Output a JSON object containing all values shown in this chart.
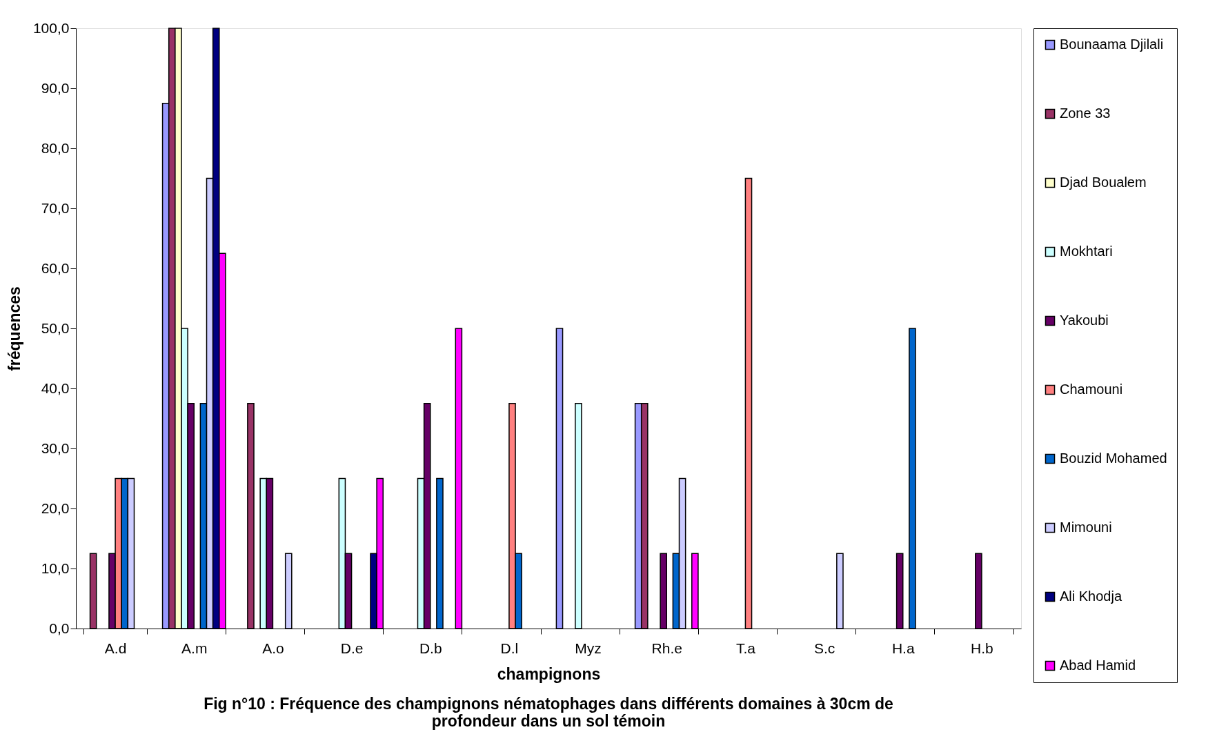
{
  "chart_data": {
    "type": "bar",
    "title": "Fig n°10  : Fréquence des champignons nématophages dans différents domaines à 30cm de profondeur dans un sol témoin",
    "xlabel": "champignons",
    "ylabel": "fréquences",
    "categories": [
      "A.d",
      "A.m",
      "A.o",
      "D.e",
      "D.b",
      "D.l",
      "Myz",
      "Rh.e",
      "T.a",
      "S.c",
      "H.a",
      "H.b"
    ],
    "series": [
      {
        "name": "Bounaama Djilali",
        "color": "#9999ff",
        "values": [
          0,
          87.5,
          0,
          0,
          0,
          0,
          50,
          37.5,
          0,
          0,
          0,
          0
        ]
      },
      {
        "name": "Zone 33",
        "color": "#993366",
        "values": [
          12.5,
          100,
          37.5,
          0,
          0,
          0,
          0,
          37.5,
          0,
          0,
          0,
          0
        ]
      },
      {
        "name": "Djad Boualem",
        "color": "#ffffcc",
        "values": [
          0,
          100,
          0,
          0,
          0,
          0,
          0,
          0,
          0,
          0,
          0,
          0
        ]
      },
      {
        "name": "Mokhtari",
        "color": "#ccffff",
        "values": [
          0,
          50,
          25,
          25,
          25,
          0,
          37.5,
          0,
          0,
          0,
          0,
          0
        ]
      },
      {
        "name": "Yakoubi",
        "color": "#660066",
        "values": [
          12.5,
          37.5,
          25,
          12.5,
          37.5,
          0,
          0,
          12.5,
          0,
          0,
          12.5,
          12.5
        ]
      },
      {
        "name": "Chamouni",
        "color": "#ff8080",
        "values": [
          25,
          0,
          0,
          0,
          0,
          37.5,
          0,
          0,
          75,
          0,
          0,
          0
        ]
      },
      {
        "name": "Bouzid Mohamed",
        "color": "#0066cc",
        "values": [
          25,
          37.5,
          0,
          0,
          25,
          12.5,
          0,
          12.5,
          0,
          0,
          50,
          0
        ]
      },
      {
        "name": "Mimouni",
        "color": "#ccccff",
        "values": [
          25,
          75,
          12.5,
          0,
          0,
          0,
          0,
          25,
          0,
          12.5,
          0,
          0
        ]
      },
      {
        "name": "Ali Khodja",
        "color": "#000080",
        "values": [
          0,
          100,
          0,
          12.5,
          0,
          0,
          0,
          0,
          0,
          0,
          0,
          0
        ]
      },
      {
        "name": "Abad Hamid",
        "color": "#ff00ff",
        "values": [
          0,
          62.5,
          0,
          25,
          50,
          0,
          0,
          12.5,
          0,
          0,
          0,
          0
        ]
      }
    ],
    "ylim": [
      0,
      100
    ],
    "yticks": [
      {
        "value": 0,
        "label": "0,0"
      },
      {
        "value": 10,
        "label": "10,0"
      },
      {
        "value": 20,
        "label": "20,0"
      },
      {
        "value": 30,
        "label": "30,0"
      },
      {
        "value": 40,
        "label": "40,0"
      },
      {
        "value": 50,
        "label": "50,0"
      },
      {
        "value": 60,
        "label": "60,0"
      },
      {
        "value": 70,
        "label": "70,0"
      },
      {
        "value": 80,
        "label": "80,0"
      },
      {
        "value": 90,
        "label": "90,0"
      },
      {
        "value": 100,
        "label": "100,0"
      }
    ],
    "grid": false,
    "legend": "right"
  }
}
